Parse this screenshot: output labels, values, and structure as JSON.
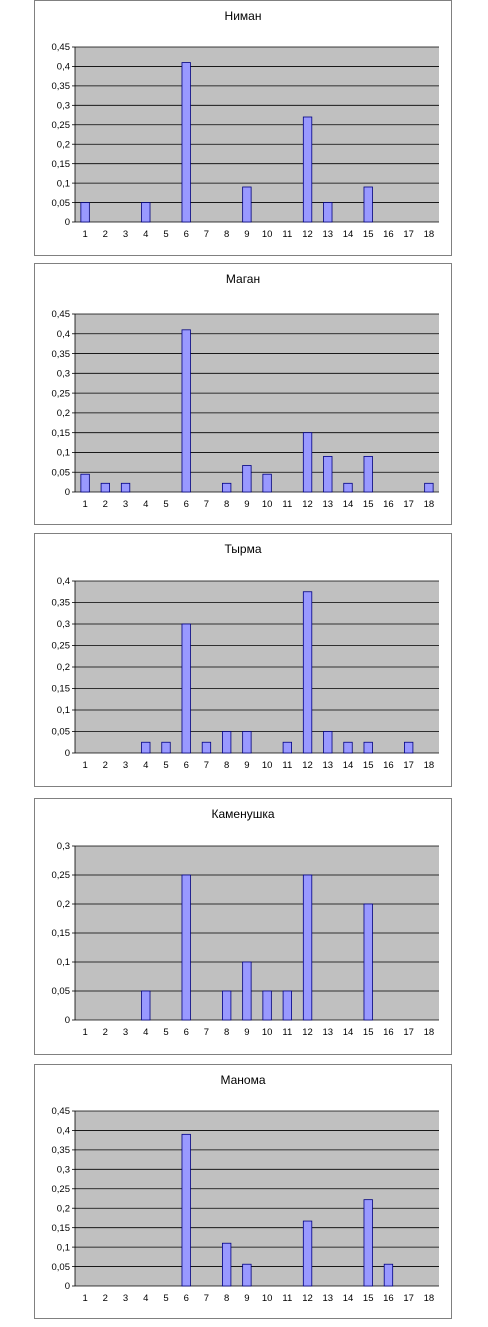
{
  "colors": {
    "plot_bg": "#c0c0c0",
    "bar_fill": "#9999ff",
    "bar_stroke": "#000080",
    "grid": "#000000"
  },
  "chart_data": [
    {
      "type": "bar",
      "title": "Ниман",
      "categories": [
        "1",
        "2",
        "3",
        "4",
        "5",
        "6",
        "7",
        "8",
        "9",
        "10",
        "11",
        "12",
        "13",
        "14",
        "15",
        "16",
        "17",
        "18"
      ],
      "values": [
        0.05,
        0,
        0,
        0.05,
        0,
        0.41,
        0,
        0,
        0.09,
        0,
        0,
        0.27,
        0.05,
        0,
        0.09,
        0,
        0,
        0
      ],
      "ylim": [
        0,
        0.45
      ],
      "yticks": [
        0,
        0.05,
        0.1,
        0.15,
        0.2,
        0.25,
        0.3,
        0.35,
        0.4,
        0.45
      ],
      "ytick_labels": [
        "0",
        "0,05",
        "0,1",
        "0,15",
        "0,2",
        "0,25",
        "0,3",
        "0,35",
        "0,4",
        "0,45"
      ],
      "grid": true
    },
    {
      "type": "bar",
      "title": "Маган",
      "categories": [
        "1",
        "2",
        "3",
        "4",
        "5",
        "6",
        "7",
        "8",
        "9",
        "10",
        "11",
        "12",
        "13",
        "14",
        "15",
        "16",
        "17",
        "18"
      ],
      "values": [
        0.045,
        0.022,
        0.022,
        0,
        0,
        0.41,
        0,
        0.022,
        0.067,
        0.045,
        0,
        0.15,
        0.09,
        0.022,
        0.09,
        0,
        0,
        0.022
      ],
      "ylim": [
        0,
        0.45
      ],
      "yticks": [
        0,
        0.05,
        0.1,
        0.15,
        0.2,
        0.25,
        0.3,
        0.35,
        0.4,
        0.45
      ],
      "ytick_labels": [
        "0",
        "0,05",
        "0,1",
        "0,15",
        "0,2",
        "0,25",
        "0,3",
        "0,35",
        "0,4",
        "0,45"
      ],
      "grid": true
    },
    {
      "type": "bar",
      "title": "Тырма",
      "categories": [
        "1",
        "2",
        "3",
        "4",
        "5",
        "6",
        "7",
        "8",
        "9",
        "10",
        "11",
        "12",
        "13",
        "14",
        "15",
        "16",
        "17",
        "18"
      ],
      "values": [
        0,
        0,
        0,
        0.025,
        0.025,
        0.3,
        0.025,
        0.05,
        0.05,
        0,
        0.025,
        0.375,
        0.05,
        0.025,
        0.025,
        0,
        0.025,
        0
      ],
      "ylim": [
        0,
        0.4
      ],
      "yticks": [
        0,
        0.05,
        0.1,
        0.15,
        0.2,
        0.25,
        0.3,
        0.35,
        0.4
      ],
      "ytick_labels": [
        "0",
        "0,05",
        "0,1",
        "0,15",
        "0,2",
        "0,25",
        "0,3",
        "0,35",
        "0,4"
      ],
      "grid": true
    },
    {
      "type": "bar",
      "title": "Каменушка",
      "categories": [
        "1",
        "2",
        "3",
        "4",
        "5",
        "6",
        "7",
        "8",
        "9",
        "10",
        "11",
        "12",
        "13",
        "14",
        "15",
        "16",
        "17",
        "18"
      ],
      "values": [
        0,
        0,
        0,
        0.05,
        0,
        0.25,
        0,
        0.05,
        0.1,
        0.05,
        0.05,
        0.25,
        0,
        0,
        0.2,
        0,
        0,
        0
      ],
      "ylim": [
        0,
        0.3
      ],
      "yticks": [
        0,
        0.05,
        0.1,
        0.15,
        0.2,
        0.25,
        0.3
      ],
      "ytick_labels": [
        "0",
        "0,05",
        "0,1",
        "0,15",
        "0,2",
        "0,25",
        "0,3"
      ],
      "grid": true
    },
    {
      "type": "bar",
      "title": "Манома",
      "categories": [
        "1",
        "2",
        "3",
        "4",
        "5",
        "6",
        "7",
        "8",
        "9",
        "10",
        "11",
        "12",
        "13",
        "14",
        "15",
        "16",
        "17",
        "18"
      ],
      "values": [
        0,
        0,
        0,
        0,
        0,
        0.39,
        0,
        0.11,
        0.056,
        0,
        0,
        0.167,
        0,
        0,
        0.222,
        0.056,
        0,
        0
      ],
      "ylim": [
        0,
        0.45
      ],
      "yticks": [
        0,
        0.05,
        0.1,
        0.15,
        0.2,
        0.25,
        0.3,
        0.35,
        0.4,
        0.45
      ],
      "ytick_labels": [
        "0",
        "0,05",
        "0,1",
        "0,15",
        "0,2",
        "0,25",
        "0,3",
        "0,35",
        "0,4",
        "0,45"
      ],
      "grid": true
    }
  ]
}
